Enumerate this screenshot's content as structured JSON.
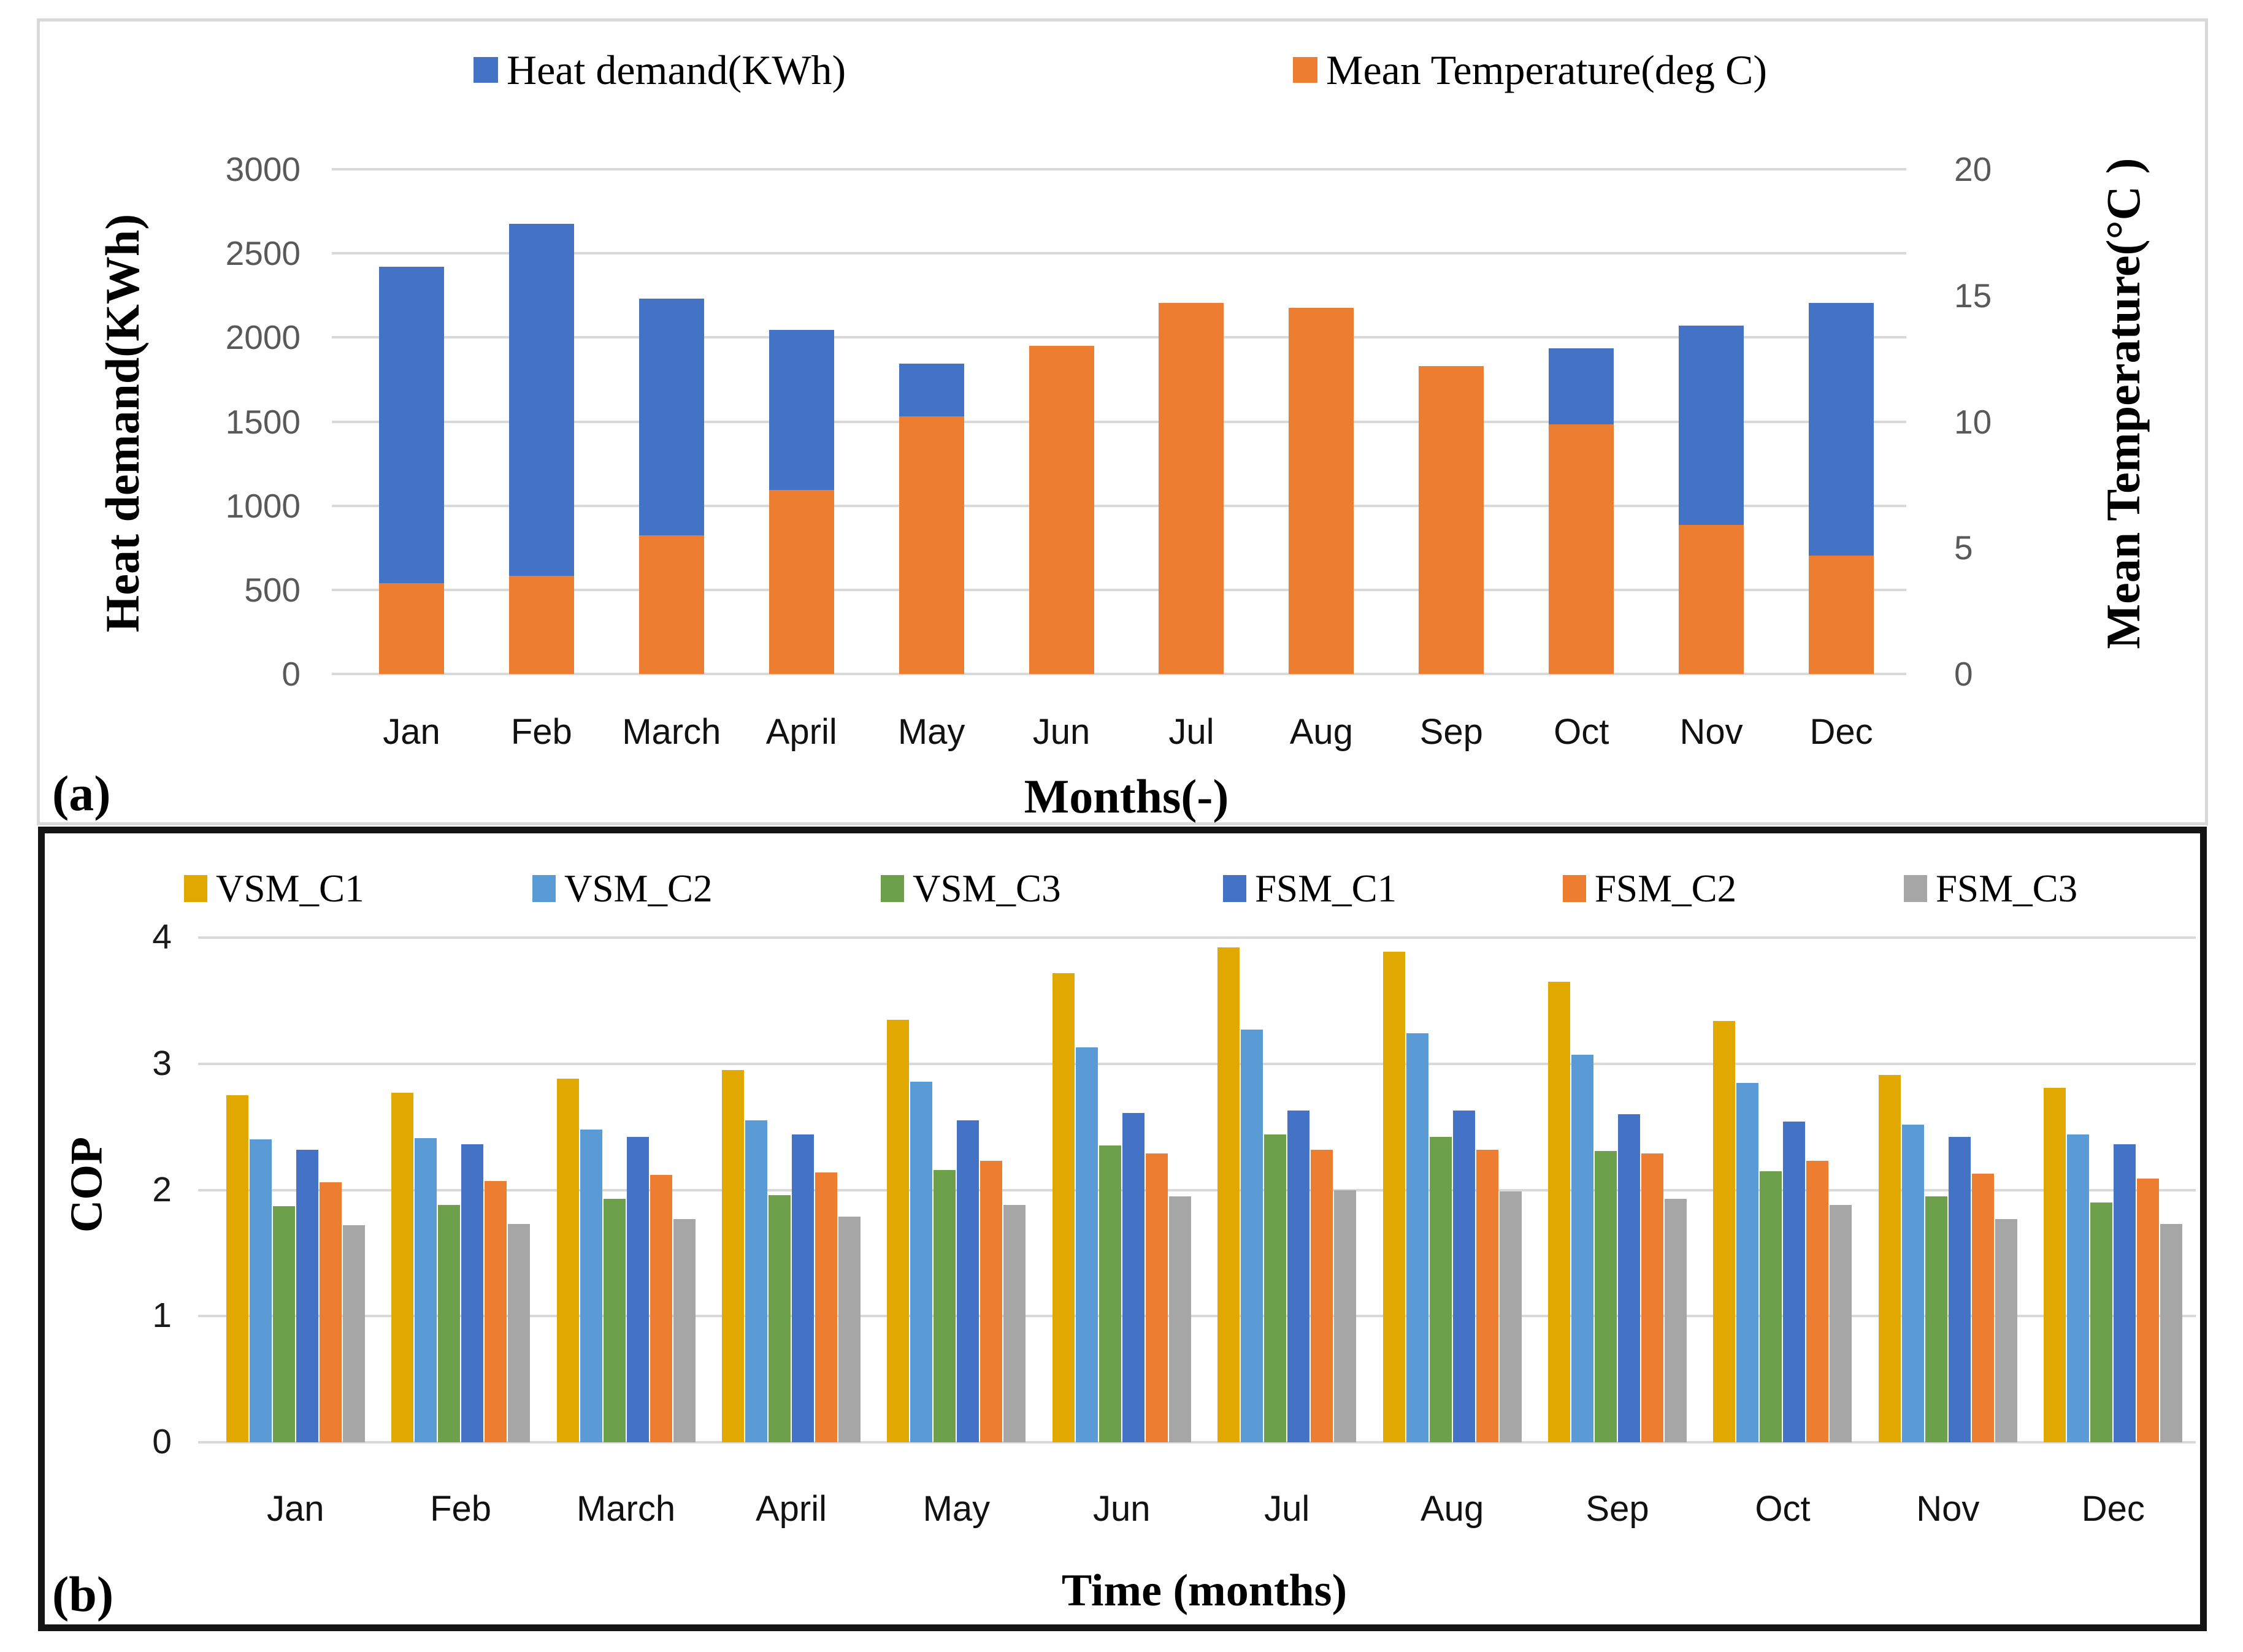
{
  "figure_background": "#ffffff",
  "gridline_color": "#d9d9d9",
  "panel_a_frame_color": "#d9d9d9",
  "panel_b_frame_color": "#141414",
  "chart_data": [
    {
      "type": "bar",
      "subtype": "overlapped-dual-axis",
      "panel_label": "(a)",
      "categories": [
        "Jan",
        "Feb",
        "March",
        "April",
        "May",
        "Jun",
        "Jul",
        "Aug",
        "Sep",
        "Oct",
        "Nov",
        "Dec"
      ],
      "series": [
        {
          "name": "Heat demand(KWh)",
          "axis": "left",
          "color": "#4472C4",
          "values": [
            2420,
            2675,
            2230,
            2045,
            1845,
            null,
            null,
            null,
            null,
            1935,
            2070,
            2205
          ]
        },
        {
          "name": "Mean Temperature(deg C)",
          "axis": "right",
          "color": "#ED7D31",
          "values": [
            3.6,
            3.9,
            5.5,
            7.3,
            10.2,
            13.0,
            14.7,
            14.5,
            12.2,
            9.9,
            5.9,
            4.7
          ]
        }
      ],
      "y_left": {
        "label": "Heat demand(KWh)",
        "ticks": [
          3000,
          2500,
          2000,
          1500,
          1000,
          500,
          0
        ],
        "range": [
          0,
          3000
        ],
        "tick_color": "#595959"
      },
      "y_right": {
        "label": "Mean Temperature(°C )",
        "ticks": [
          20,
          15,
          10,
          5,
          0
        ],
        "range": [
          0,
          20
        ],
        "tick_color": "#595959"
      },
      "xlabel": "Months(-)",
      "legend_position": "top",
      "grid": true
    },
    {
      "type": "bar",
      "subtype": "grouped",
      "panel_label": "(b)",
      "categories": [
        "Jan",
        "Feb",
        "March",
        "April",
        "May",
        "Jun",
        "Jul",
        "Aug",
        "Sep",
        "Oct",
        "Nov",
        "Dec"
      ],
      "series": [
        {
          "name": "VSM_C1",
          "color": "#E0A800",
          "values": [
            2.75,
            2.77,
            2.88,
            2.95,
            3.35,
            3.72,
            3.92,
            3.89,
            3.65,
            3.34,
            2.91,
            2.81
          ]
        },
        {
          "name": "VSM_C2",
          "color": "#5B9BD5",
          "values": [
            2.4,
            2.41,
            2.48,
            2.55,
            2.86,
            3.13,
            3.27,
            3.24,
            3.07,
            2.85,
            2.52,
            2.44
          ]
        },
        {
          "name": "VSM_C3",
          "color": "#6CA04A",
          "values": [
            1.87,
            1.88,
            1.93,
            1.96,
            2.16,
            2.35,
            2.44,
            2.42,
            2.31,
            2.15,
            1.95,
            1.9
          ]
        },
        {
          "name": "FSM_C1",
          "color": "#4472C4",
          "values": [
            2.32,
            2.36,
            2.42,
            2.44,
            2.55,
            2.61,
            2.63,
            2.63,
            2.6,
            2.54,
            2.42,
            2.36
          ]
        },
        {
          "name": "FSM_C2",
          "color": "#ED7D31",
          "values": [
            2.06,
            2.07,
            2.12,
            2.14,
            2.23,
            2.29,
            2.32,
            2.32,
            2.29,
            2.23,
            2.13,
            2.09
          ]
        },
        {
          "name": "FSM_C3",
          "color": "#A6A6A6",
          "values": [
            1.72,
            1.73,
            1.77,
            1.79,
            1.88,
            1.95,
            2.0,
            1.99,
            1.93,
            1.88,
            1.77,
            1.73
          ]
        }
      ],
      "ylabel": "COP",
      "xlabel": "Time (months)",
      "yticks": [
        4,
        3,
        2,
        1,
        0
      ],
      "ylim": [
        0,
        4
      ],
      "legend_position": "top",
      "grid": true
    }
  ]
}
